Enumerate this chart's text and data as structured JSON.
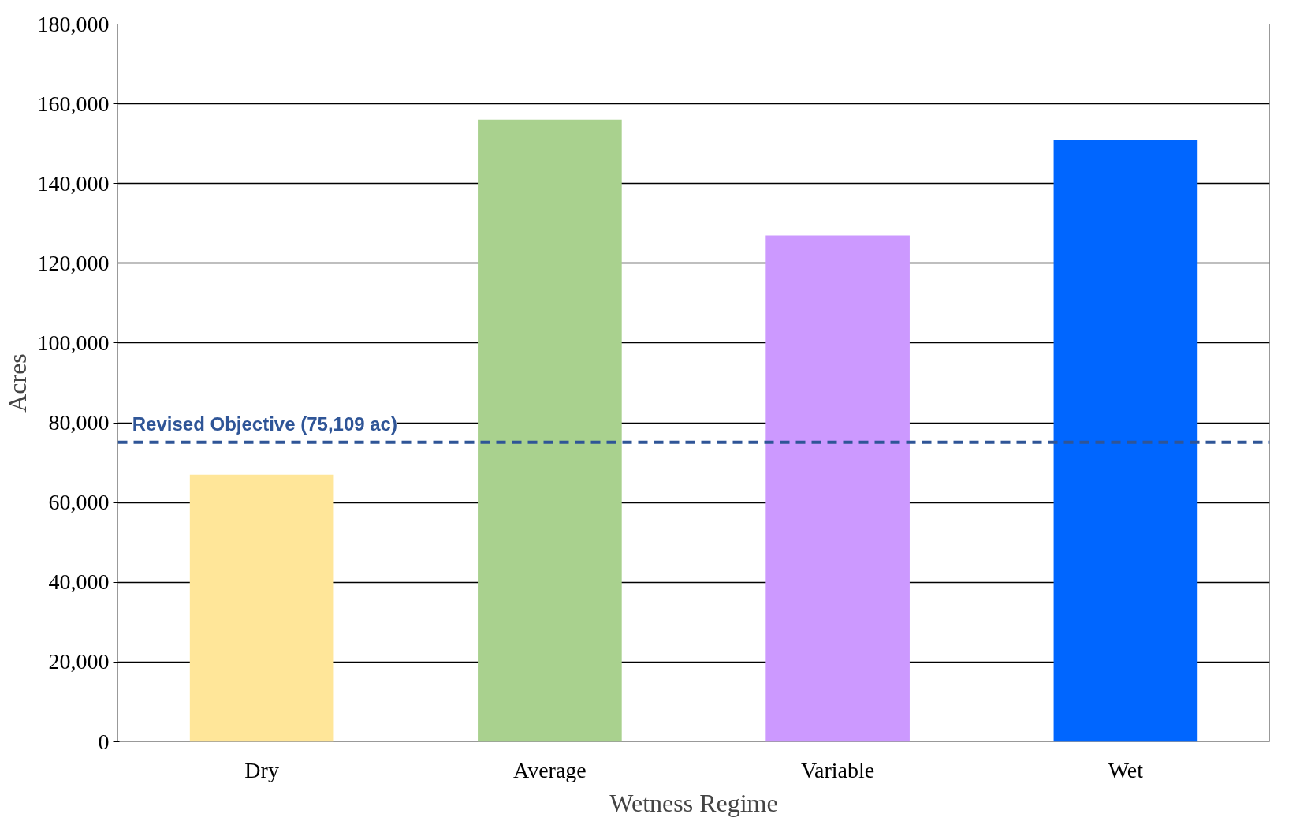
{
  "chart_data": {
    "type": "bar",
    "xlabel": "Wetness Regime",
    "ylabel": "Acres",
    "categories": [
      "Dry",
      "Average",
      "Variable",
      "Wet"
    ],
    "values": [
      67000,
      156000,
      127000,
      151000
    ],
    "colors": [
      "#ffe699",
      "#a9d18e",
      "#cc99ff",
      "#0066ff"
    ],
    "ylim": [
      0,
      180000
    ],
    "yticks": [
      {
        "value": 0,
        "label": "0"
      },
      {
        "value": 20000,
        "label": "20,000"
      },
      {
        "value": 40000,
        "label": "40,000"
      },
      {
        "value": 60000,
        "label": "60,000"
      },
      {
        "value": 80000,
        "label": "80,000"
      },
      {
        "value": 100000,
        "label": "100,000"
      },
      {
        "value": 120000,
        "label": "120,000"
      },
      {
        "value": 140000,
        "label": "140,000"
      },
      {
        "value": 160000,
        "label": "160,000"
      },
      {
        "value": 180000,
        "label": "180,000"
      }
    ],
    "grid": "y",
    "ref_lines": [
      {
        "axis": "y",
        "value": 75109,
        "label": "Revised Objective (75,109 ac)",
        "color": "#2f5597",
        "line_style": "dashed"
      }
    ]
  }
}
